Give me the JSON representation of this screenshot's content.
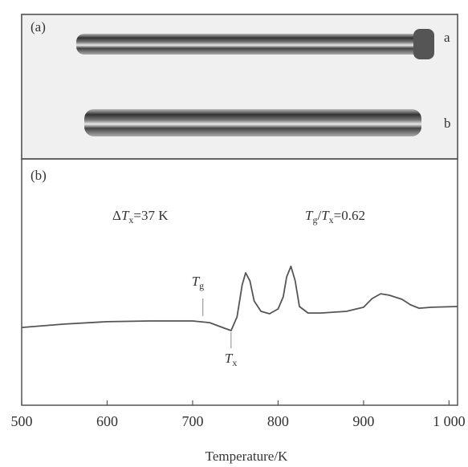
{
  "panel_a": {
    "label": "(a)",
    "rods": [
      "a",
      "b"
    ]
  },
  "chart_data": {
    "type": "line",
    "panel_label": "(b)",
    "xlabel": "Temperature/K",
    "xlim": [
      500,
      1010
    ],
    "xticks": [
      500,
      600,
      700,
      800,
      900,
      {
        "value": 1000,
        "label": "1 000"
      }
    ],
    "ylim": [
      0,
      100
    ],
    "color": "#555555",
    "x": [
      500,
      550,
      600,
      650,
      700,
      720,
      735,
      745,
      752,
      758,
      762,
      767,
      772,
      780,
      790,
      800,
      806,
      810,
      815,
      820,
      825,
      835,
      850,
      880,
      900,
      910,
      920,
      930,
      945,
      955,
      965,
      980,
      1010
    ],
    "values": [
      32.3,
      33.7,
      34.7,
      35,
      35,
      34.3,
      32.3,
      31,
      36.7,
      50,
      55,
      51.7,
      43.3,
      39,
      38,
      40,
      45,
      53.3,
      57.7,
      51.7,
      41,
      38.3,
      38.3,
      39,
      40.7,
      44.3,
      46.3,
      45.7,
      44,
      41.7,
      40.3,
      40.7,
      41
    ],
    "annotations": [
      {
        "parts": [
          "Δ",
          "T",
          "x",
          "=37 K"
        ]
      },
      {
        "parts": [
          "T",
          "g",
          "/",
          "T",
          "x",
          "=0.62"
        ]
      }
    ],
    "markers": [
      {
        "parts": [
          "T",
          "g"
        ],
        "x": 712
      },
      {
        "parts": [
          "T",
          "x"
        ],
        "x": 745
      }
    ]
  }
}
